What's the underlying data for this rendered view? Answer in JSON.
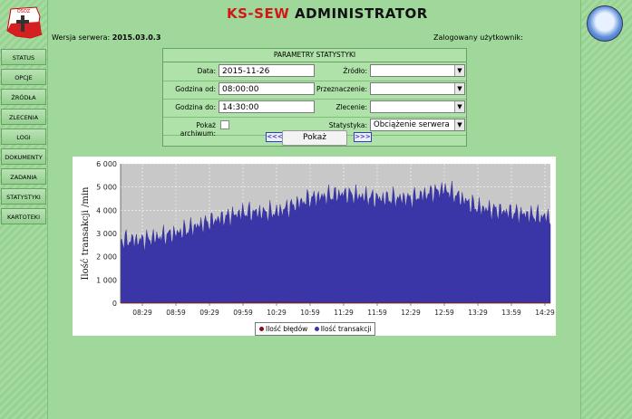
{
  "header": {
    "title_part1": "KS-SEW",
    "title_part2": "ADMINISTRATOR",
    "version_label": "Wersja serwera:",
    "version_value": "2015.03.0.3",
    "user_label": "Zalogowany użytkownik:"
  },
  "menu": [
    {
      "label": "STATUS"
    },
    {
      "label": "OPCJE"
    },
    {
      "label": "ŹRÓDŁA"
    },
    {
      "label": "ZLECENIA"
    },
    {
      "label": "LOGI"
    },
    {
      "label": "DOKUMENTY"
    },
    {
      "label": "ZADANIA"
    },
    {
      "label": "STATYSTYKI"
    },
    {
      "label": "KARTOTEKI"
    }
  ],
  "params": {
    "title": "PARAMETRY STATYSTYKI",
    "date_label": "Data:",
    "date_value": "2015-11-26",
    "from_label": "Godzina od:",
    "from_value": "08:00:00",
    "to_label": "Godzina do:",
    "to_value": "14:30:00",
    "archive_label": "Pokaż archiwum:",
    "source_label": "Źródło:",
    "source_value": "",
    "dest_label": "Przeznaczenie:",
    "dest_value": "",
    "order_label": "Zlecenie:",
    "order_value": "",
    "stat_label": "Statystyka:",
    "stat_value": "Obciążenie serwera",
    "show_button": "Pokaż",
    "prev_button": "<<<",
    "next_button": ">>>"
  },
  "chart_data": {
    "type": "area",
    "ylabel": "Ilość transakcji /min",
    "xlabel": "",
    "ylim": [
      0,
      6000
    ],
    "yticks": [
      "0",
      "1 000",
      "2 000",
      "3 000",
      "4 000",
      "5 000",
      "6 000"
    ],
    "categories": [
      "08:29",
      "08:59",
      "09:29",
      "09:59",
      "10:29",
      "10:59",
      "11:29",
      "11:59",
      "12:29",
      "12:59",
      "13:29",
      "13:59",
      "14:29"
    ],
    "series": [
      {
        "name": "Ilość błędów",
        "color": "#8b0a1a",
        "values": [
          20,
          30,
          25,
          35,
          40,
          30,
          20,
          25,
          30,
          20,
          25,
          30,
          20
        ]
      },
      {
        "name": "Ilość transakcji",
        "color": "#3a36a8",
        "values": [
          2700,
          3000,
          3500,
          3900,
          3900,
          4500,
          4700,
          4500,
          4500,
          4900,
          4100,
          3900,
          3700
        ]
      }
    ],
    "grid": true,
    "legend": "bottom",
    "colors": {
      "plot_bg": "#c8c8c8",
      "area": "#3a36a8",
      "errors": "#8b0a1a"
    }
  }
}
